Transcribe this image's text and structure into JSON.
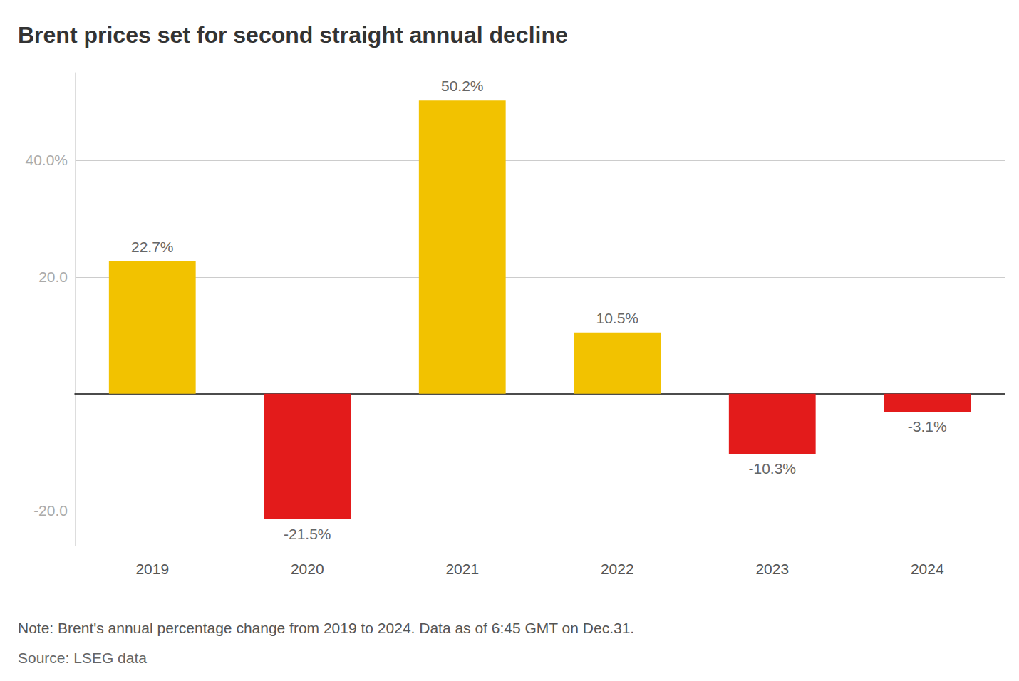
{
  "chart_data": {
    "type": "bar",
    "title": "Brent prices set for second straight annual decline",
    "note": "Note: Brent's annual percentage change from 2019 to 2024. Data as of 6:45 GMT on Dec.31.",
    "source": "Source: LSEG data",
    "categories": [
      "2019",
      "2020",
      "2021",
      "2022",
      "2023",
      "2024"
    ],
    "values": [
      22.7,
      -21.5,
      50.2,
      10.5,
      -10.3,
      -3.1
    ],
    "value_labels": [
      "22.7%",
      "-21.5%",
      "50.2%",
      "10.5%",
      "-10.3%",
      "-3.1%"
    ],
    "colors": [
      "#f2c200",
      "#e31b1b",
      "#f2c200",
      "#f2c200",
      "#e31b1b",
      "#e31b1b"
    ],
    "ylim": [
      -26,
      55
    ],
    "yticks": [
      {
        "value": -20,
        "label": "-20.0"
      },
      {
        "value": 20,
        "label": "20.0"
      },
      {
        "value": 40,
        "label": "40.0%"
      }
    ],
    "grid": true,
    "data_labels": true
  }
}
